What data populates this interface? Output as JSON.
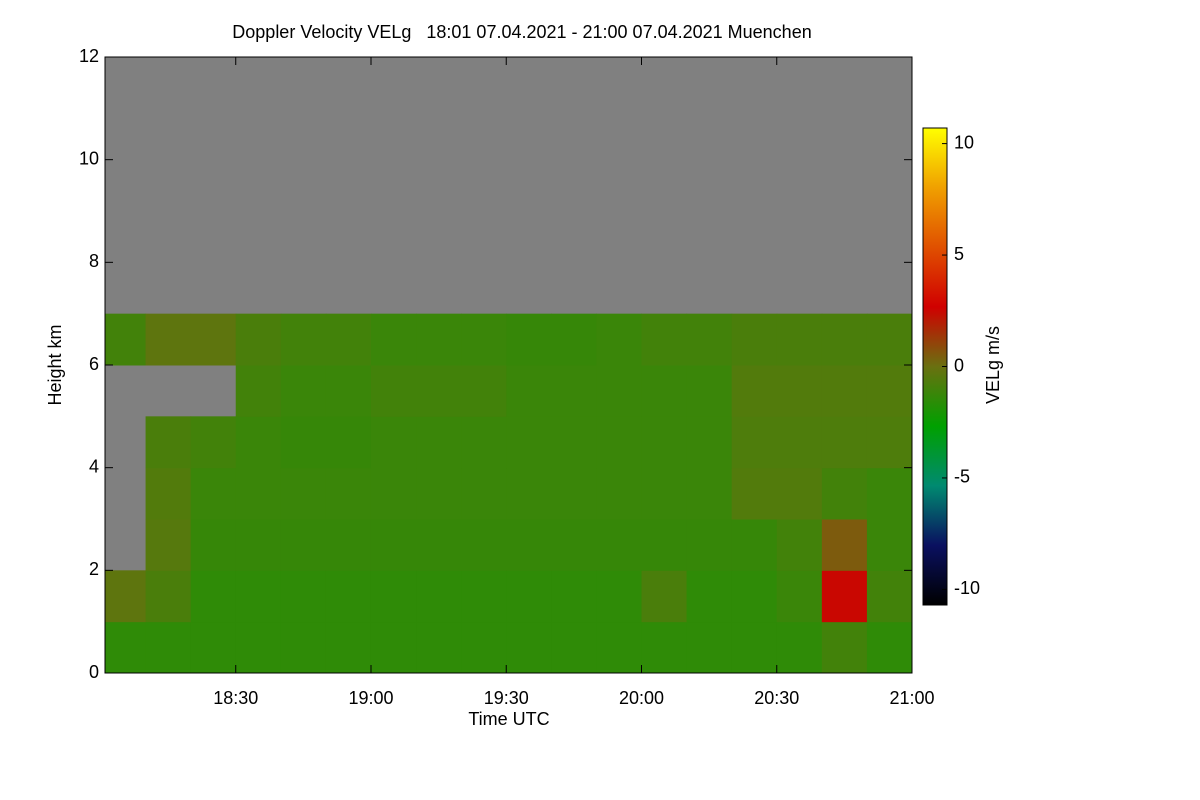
{
  "chart_data": {
    "type": "heatmap",
    "title": "Doppler Velocity VELg   18:01 07.04.2021 - 21:00 07.04.2021 Muenchen",
    "x_label": "Time UTC",
    "y_label": "Height km",
    "colorbar_label": "VELg m/s",
    "x": [
      18.0167,
      18.1667,
      18.3333,
      18.5,
      18.6667,
      18.8333,
      19.0,
      19.1667,
      19.3333,
      19.5,
      19.6667,
      19.8333,
      20.0,
      20.1667,
      20.3333,
      20.5,
      20.6667,
      20.8333,
      21.0
    ],
    "y": [
      0,
      1,
      2,
      3,
      4,
      5,
      6,
      7,
      8,
      9,
      10,
      11,
      12
    ],
    "z": [
      [
        -1.5,
        -1.5,
        -1.5,
        -1.5,
        -1.5,
        -1.5,
        -1.5,
        -1.5,
        -1.5,
        -1.5,
        -1.5,
        -1.5,
        -1.5,
        -1.5,
        -1.5,
        -1.5,
        -1.0,
        -1.5
      ],
      [
        -0.3,
        -0.8,
        -1.5,
        -1.5,
        -1.5,
        -1.5,
        -1.5,
        -1.5,
        -1.5,
        -1.5,
        -1.5,
        -1.5,
        -0.8,
        -1.5,
        -1.5,
        -1.2,
        2.5,
        -1.0
      ],
      [
        null,
        -0.5,
        -1.3,
        -1.3,
        -1.3,
        -1.3,
        -1.3,
        -1.3,
        -1.3,
        -1.3,
        -1.3,
        -1.3,
        -1.3,
        -1.3,
        -1.3,
        -1.0,
        0.5,
        -1.2
      ],
      [
        null,
        -0.6,
        -1.2,
        -1.2,
        -1.2,
        -1.2,
        -1.2,
        -1.2,
        -1.2,
        -1.2,
        -1.2,
        -1.2,
        -1.2,
        -1.2,
        -0.6,
        -0.6,
        -1.0,
        -1.2
      ],
      [
        null,
        -0.8,
        -1.0,
        -1.2,
        -1.3,
        -1.3,
        -1.2,
        -1.2,
        -1.2,
        -1.2,
        -1.2,
        -1.2,
        -1.2,
        -1.2,
        -0.7,
        -0.7,
        -0.7,
        -0.7
      ],
      [
        null,
        null,
        null,
        -1.0,
        -1.2,
        -1.2,
        -1.0,
        -1.0,
        -1.0,
        -1.2,
        -1.2,
        -1.2,
        -1.2,
        -1.2,
        -0.6,
        -0.6,
        -0.6,
        -0.6
      ],
      [
        -1.0,
        -0.3,
        -0.3,
        -0.8,
        -1.0,
        -1.0,
        -1.2,
        -1.2,
        -1.2,
        -1.3,
        -1.3,
        -1.2,
        -1.0,
        -1.0,
        -0.8,
        -0.8,
        -0.8,
        -0.8
      ],
      [
        null,
        null,
        null,
        null,
        null,
        null,
        null,
        null,
        null,
        null,
        null,
        null,
        null,
        null,
        null,
        null,
        null,
        null
      ],
      [
        null,
        null,
        null,
        null,
        null,
        null,
        null,
        null,
        null,
        null,
        null,
        null,
        null,
        null,
        null,
        null,
        null,
        null
      ],
      [
        null,
        null,
        null,
        null,
        null,
        null,
        null,
        null,
        null,
        null,
        null,
        null,
        null,
        null,
        null,
        null,
        null,
        null
      ],
      [
        null,
        null,
        null,
        null,
        null,
        null,
        null,
        null,
        null,
        null,
        null,
        null,
        null,
        null,
        null,
        null,
        null,
        null
      ],
      [
        null,
        null,
        null,
        null,
        null,
        null,
        null,
        null,
        null,
        null,
        null,
        null,
        null,
        null,
        null,
        null,
        null,
        null
      ]
    ],
    "xlim": [
      18.0167,
      21.0
    ],
    "xticks": [
      {
        "value": 18.5,
        "label": "18:30"
      },
      {
        "value": 19.0,
        "label": "19:00"
      },
      {
        "value": 19.5,
        "label": "19:30"
      },
      {
        "value": 20.0,
        "label": "20:00"
      },
      {
        "value": 20.5,
        "label": "20:30"
      },
      {
        "value": 21.0,
        "label": "21:00"
      }
    ],
    "ylim": [
      0,
      12
    ],
    "yticks": [
      0,
      2,
      4,
      6,
      8,
      10,
      12
    ],
    "clim": [
      -10.7,
      10.7
    ],
    "cticks": [
      -10,
      -5,
      0,
      5,
      10
    ],
    "colors": [
      "#000000",
      "#0a1060",
      "#008a70",
      "#00a000",
      "#6a7010",
      "#d00000",
      "#e05000",
      "#f0a000",
      "#ffff00"
    ],
    "missing_color": "#808080"
  }
}
